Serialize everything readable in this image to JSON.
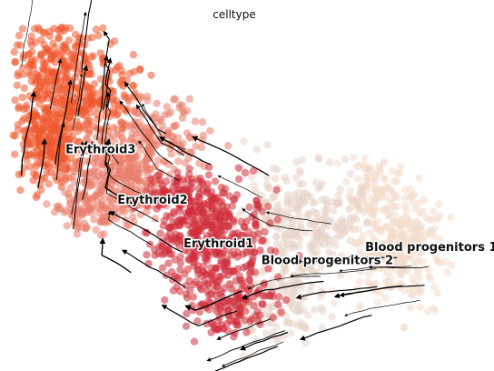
{
  "chart_data": {
    "type": "scatter",
    "title": "celltype",
    "xlabel": "",
    "ylabel": "",
    "grid": false,
    "axes_visible": false,
    "legend": "on data",
    "xlim": [
      0,
      100
    ],
    "ylim": [
      0,
      100
    ],
    "overlay": "velocity streamlines",
    "colors": {
      "Erythroid3": "#ef5a2f",
      "Erythroid2": "#e9806d",
      "Erythroid1": "#cf2d3b",
      "Blood progenitors 2": "#e7d4c8",
      "Blood progenitors 1": "#f2dccc",
      "streamline": "#000000"
    },
    "series": [
      {
        "name": "Erythroid3",
        "label_position": [
          19,
          62
        ]
      },
      {
        "name": "Erythroid2",
        "label_position": [
          30,
          47
        ]
      },
      {
        "name": "Erythroid1",
        "label_position": [
          44,
          34
        ]
      },
      {
        "name": "Blood progenitors 2",
        "label_position": [
          67,
          29
        ]
      },
      {
        "name": "Blood progenitors 1",
        "label_position": [
          89,
          33
        ]
      }
    ]
  }
}
